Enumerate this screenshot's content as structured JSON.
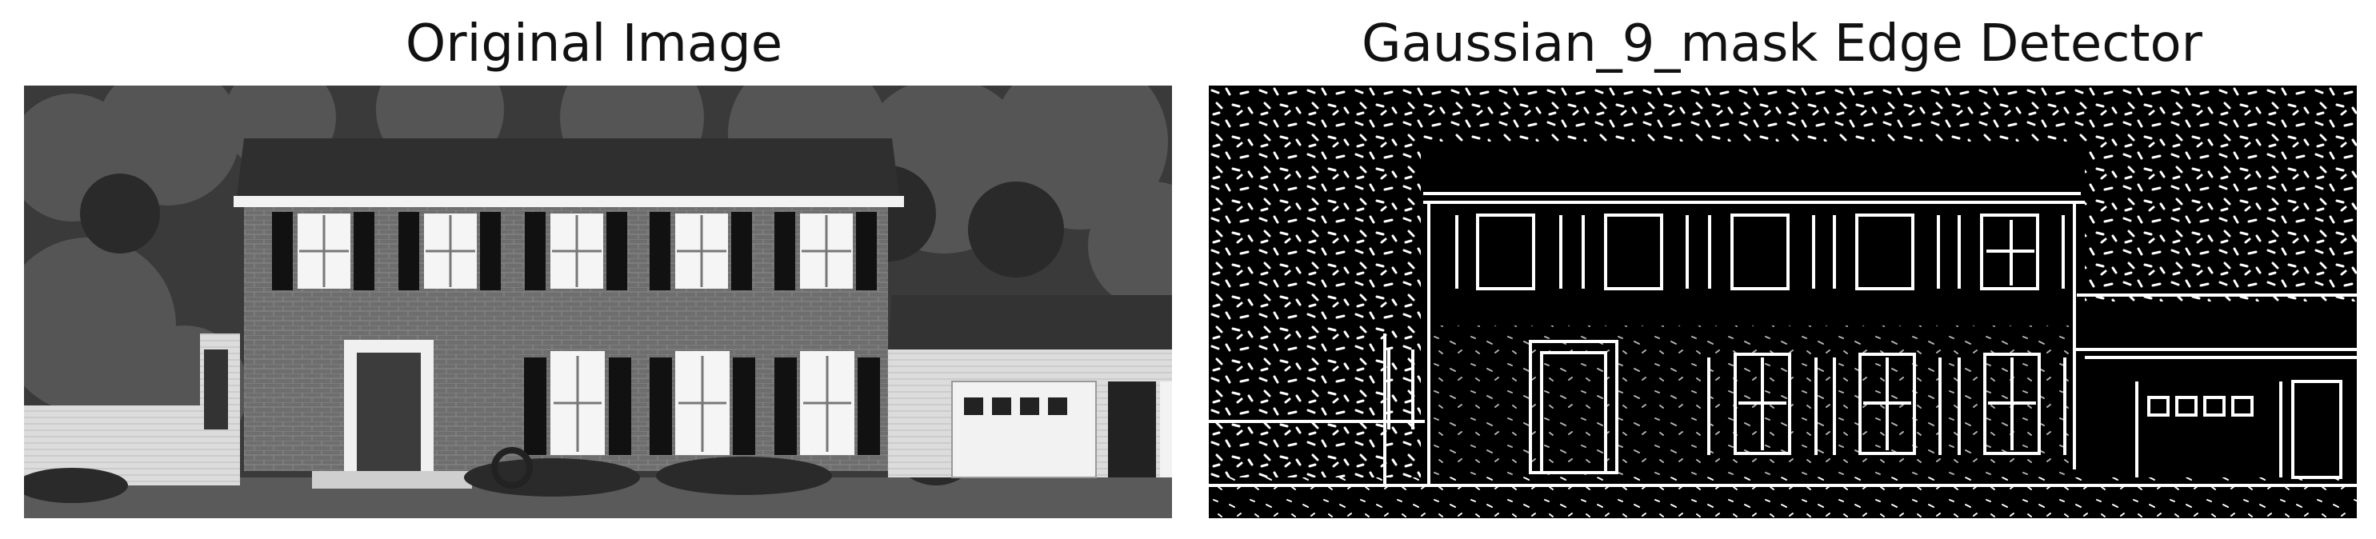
{
  "panels": [
    {
      "title": "Original Image",
      "image": "grayscale photo of a two-story brick colonial house with black shutters, white-trimmed windows, a front door, an attached garage on the right and trees behind"
    },
    {
      "title": "Gaussian_9_mask Edge Detector",
      "image": "binary edge map (white edges on black) of the same house scene"
    }
  ]
}
